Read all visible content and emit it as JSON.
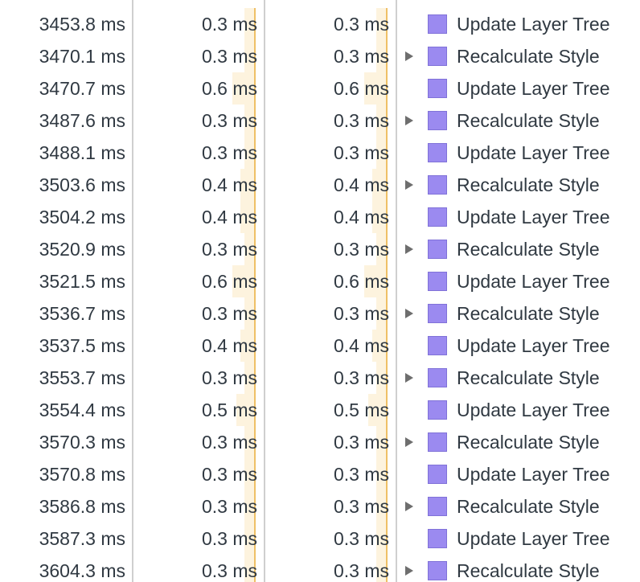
{
  "colors": {
    "self_bar_fill": "#fdf3de",
    "self_bar_edge": "#efc066",
    "rendering_category": "#9b8af0",
    "divider": "#cfcfcf",
    "text": "#303942"
  },
  "icons": {
    "expander": "triangle-right-icon",
    "category": "rendering-category-swatch"
  },
  "rows": [
    {
      "start": "3453.8 ms",
      "self": "0.3 ms",
      "self_fraction": 0.3,
      "total": "0.3 ms",
      "total_fraction": 0.3,
      "activity": "Update Layer Tree",
      "expandable": false
    },
    {
      "start": "3470.1 ms",
      "self": "0.3 ms",
      "self_fraction": 0.3,
      "total": "0.3 ms",
      "total_fraction": 0.3,
      "activity": "Recalculate Style",
      "expandable": true
    },
    {
      "start": "3470.7 ms",
      "self": "0.6 ms",
      "self_fraction": 0.6,
      "total": "0.6 ms",
      "total_fraction": 0.6,
      "activity": "Update Layer Tree",
      "expandable": false
    },
    {
      "start": "3487.6 ms",
      "self": "0.3 ms",
      "self_fraction": 0.3,
      "total": "0.3 ms",
      "total_fraction": 0.3,
      "activity": "Recalculate Style",
      "expandable": true
    },
    {
      "start": "3488.1 ms",
      "self": "0.3 ms",
      "self_fraction": 0.3,
      "total": "0.3 ms",
      "total_fraction": 0.3,
      "activity": "Update Layer Tree",
      "expandable": false
    },
    {
      "start": "3503.6 ms",
      "self": "0.4 ms",
      "self_fraction": 0.4,
      "total": "0.4 ms",
      "total_fraction": 0.4,
      "activity": "Recalculate Style",
      "expandable": true
    },
    {
      "start": "3504.2 ms",
      "self": "0.4 ms",
      "self_fraction": 0.4,
      "total": "0.4 ms",
      "total_fraction": 0.4,
      "activity": "Update Layer Tree",
      "expandable": false
    },
    {
      "start": "3520.9 ms",
      "self": "0.3 ms",
      "self_fraction": 0.3,
      "total": "0.3 ms",
      "total_fraction": 0.3,
      "activity": "Recalculate Style",
      "expandable": true
    },
    {
      "start": "3521.5 ms",
      "self": "0.6 ms",
      "self_fraction": 0.6,
      "total": "0.6 ms",
      "total_fraction": 0.6,
      "activity": "Update Layer Tree",
      "expandable": false
    },
    {
      "start": "3536.7 ms",
      "self": "0.3 ms",
      "self_fraction": 0.3,
      "total": "0.3 ms",
      "total_fraction": 0.3,
      "activity": "Recalculate Style",
      "expandable": true
    },
    {
      "start": "3537.5 ms",
      "self": "0.4 ms",
      "self_fraction": 0.4,
      "total": "0.4 ms",
      "total_fraction": 0.4,
      "activity": "Update Layer Tree",
      "expandable": false
    },
    {
      "start": "3553.7 ms",
      "self": "0.3 ms",
      "self_fraction": 0.3,
      "total": "0.3 ms",
      "total_fraction": 0.3,
      "activity": "Recalculate Style",
      "expandable": true
    },
    {
      "start": "3554.4 ms",
      "self": "0.5 ms",
      "self_fraction": 0.5,
      "total": "0.5 ms",
      "total_fraction": 0.5,
      "activity": "Update Layer Tree",
      "expandable": false
    },
    {
      "start": "3570.3 ms",
      "self": "0.3 ms",
      "self_fraction": 0.3,
      "total": "0.3 ms",
      "total_fraction": 0.3,
      "activity": "Recalculate Style",
      "expandable": true
    },
    {
      "start": "3570.8 ms",
      "self": "0.3 ms",
      "self_fraction": 0.3,
      "total": "0.3 ms",
      "total_fraction": 0.3,
      "activity": "Update Layer Tree",
      "expandable": false
    },
    {
      "start": "3586.8 ms",
      "self": "0.3 ms",
      "self_fraction": 0.3,
      "total": "0.3 ms",
      "total_fraction": 0.3,
      "activity": "Recalculate Style",
      "expandable": true
    },
    {
      "start": "3587.3 ms",
      "self": "0.3 ms",
      "self_fraction": 0.3,
      "total": "0.3 ms",
      "total_fraction": 0.3,
      "activity": "Update Layer Tree",
      "expandable": false
    },
    {
      "start": "3604.3 ms",
      "self": "0.3 ms",
      "self_fraction": 0.3,
      "total": "0.3 ms",
      "total_fraction": 0.3,
      "activity": "Recalculate Style",
      "expandable": true
    }
  ]
}
